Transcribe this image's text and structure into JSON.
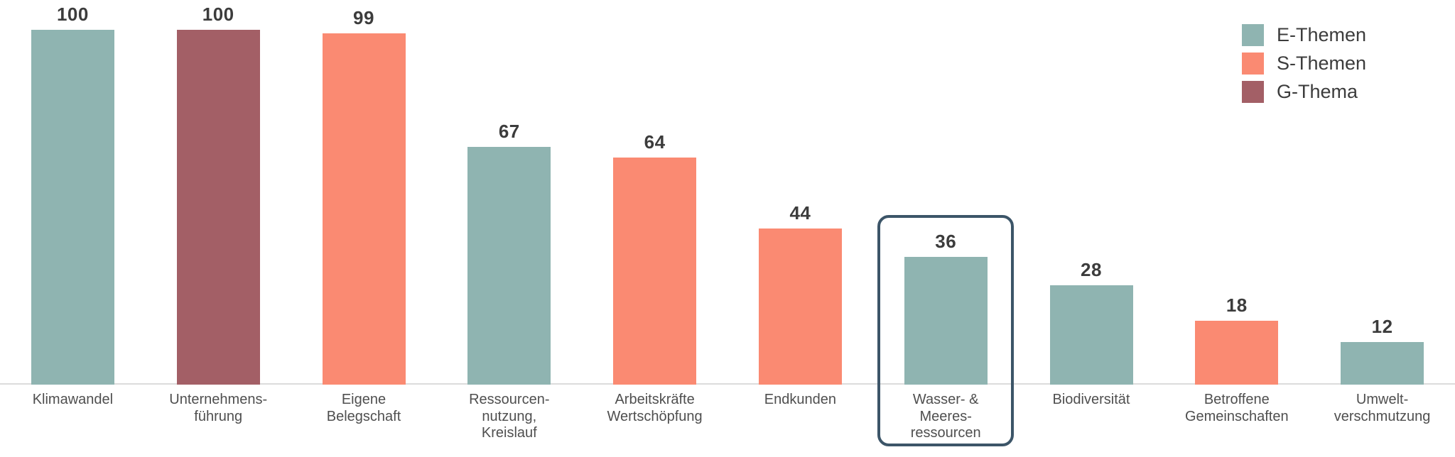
{
  "chart_data": {
    "type": "bar",
    "title": "",
    "xlabel": "",
    "ylabel": "",
    "ylim": [
      0,
      100
    ],
    "grid": false,
    "legend_position": "top-right",
    "categories": [
      "Klimawandel",
      "Unternehmens-\nführung",
      "Eigene\nBelegschaft",
      "Ressourcen-\nnutzung,\nKreislauf",
      "Arbeitskräfte\nWertschöpfung",
      "Endkunden",
      "Wasser- &\nMeeres-\nressourcen",
      "Biodiversität",
      "Betroffene\nGemeinschaften",
      "Umwelt-\nverschmutzung"
    ],
    "values": [
      100,
      100,
      99,
      67,
      64,
      44,
      36,
      28,
      18,
      12
    ],
    "bar_series_keys": [
      "E",
      "G",
      "S",
      "E",
      "S",
      "S",
      "E",
      "E",
      "S",
      "E"
    ],
    "legend": [
      {
        "key": "E",
        "label": "E-Themen",
        "color": "#8fb4b1"
      },
      {
        "key": "S",
        "label": "S-Themen",
        "color": "#fa8a72"
      },
      {
        "key": "G",
        "label": "G-Thema",
        "color": "#a35f66"
      }
    ],
    "highlighted_category_index": 6,
    "highlighted_category": "Wasser- & Meeres-ressourcen"
  },
  "colors": {
    "background": "#ffffff",
    "axis_line": "#dcdcdc",
    "highlight_border": "#3c5568",
    "value_label": "#3c3c3c",
    "category_label": "#4f4f4f",
    "legend_label": "#3c3c3c"
  }
}
